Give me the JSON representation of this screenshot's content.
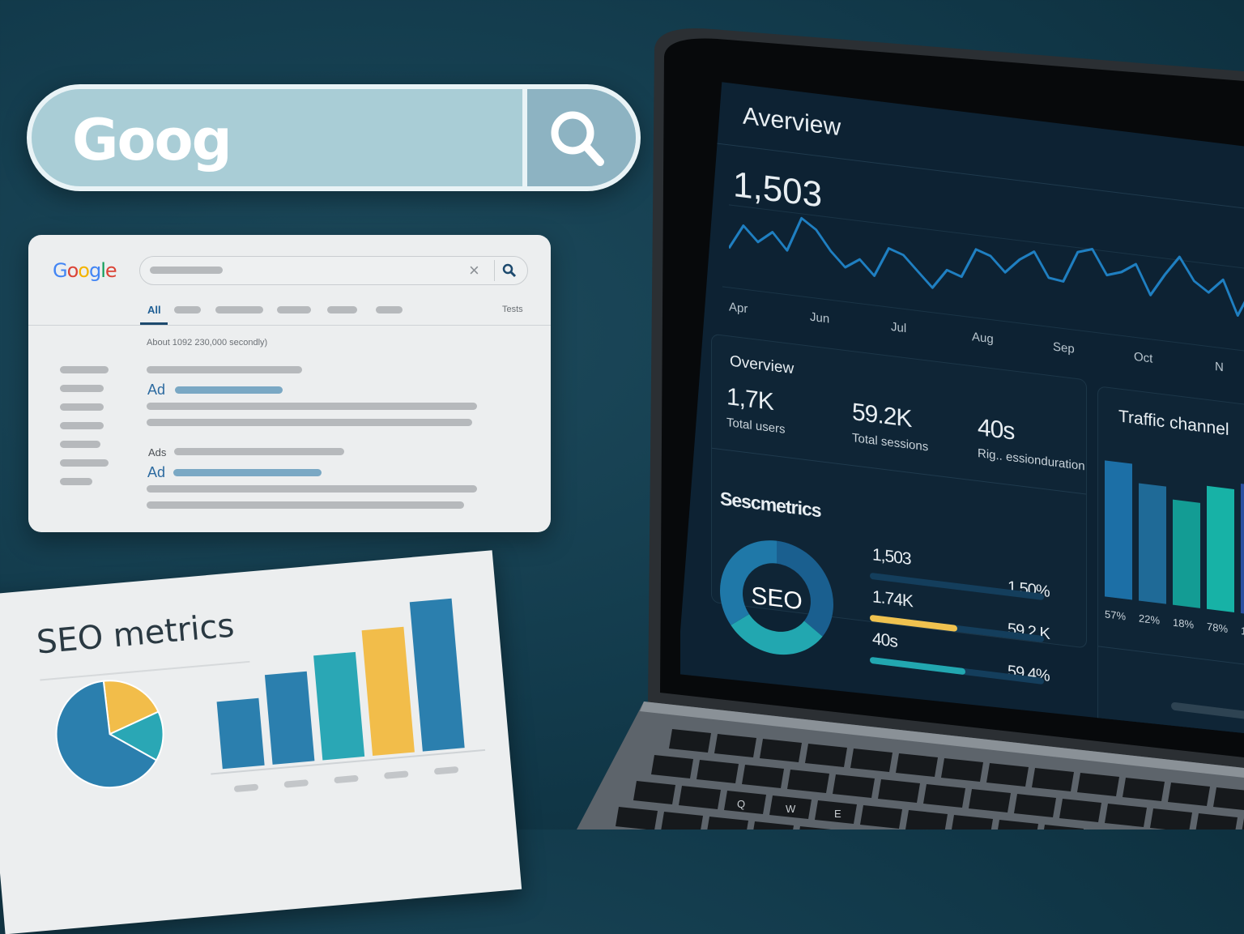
{
  "search_pill": {
    "query": "Goog",
    "icon": "search-icon"
  },
  "serp": {
    "logo": "Google",
    "logo_colors": [
      "#4285f4",
      "#db4437",
      "#f4b400",
      "#4285f4",
      "#0f9d58",
      "#db4437"
    ],
    "tabs": {
      "active": "All",
      "right": "Tests"
    },
    "result_stats": "About 1092 230,000 secondly)",
    "ad_label_1": "Ad",
    "ads_heading": "Ads",
    "ad_label_2": "Ad"
  },
  "paper": {
    "title": "SEO metrics",
    "pie": {
      "slices": [
        {
          "value": 65,
          "color": "#2b7fae"
        },
        {
          "value": 20,
          "color": "#f2bd4a"
        },
        {
          "value": 15,
          "color": "#2aa7b5"
        }
      ]
    },
    "bars": {
      "values": [
        45,
        60,
        70,
        84,
        100
      ],
      "colors": [
        "#2b7fae",
        "#2b7fae",
        "#2aa7b5",
        "#f2bd4a",
        "#2b7fae"
      ]
    }
  },
  "dashboard": {
    "title": "Averview",
    "big_number": "1,503",
    "months": [
      "Apr",
      "Jun",
      "Jul",
      "Aug",
      "Sep",
      "Oct",
      "N"
    ],
    "sparkline": [
      30,
      55,
      40,
      52,
      35,
      70,
      60,
      40,
      25,
      35,
      20,
      50,
      45,
      30,
      15,
      35,
      30,
      60,
      55,
      40,
      55,
      65,
      40,
      38,
      70,
      75,
      50,
      55,
      65,
      35,
      58,
      78,
      55,
      45,
      60,
      25,
      55,
      72,
      68,
      50
    ],
    "overview": {
      "title": "Overview",
      "stats": [
        {
          "value": "1,7K",
          "label": "Total users"
        },
        {
          "value": "59.2K",
          "label": "Total sessions"
        },
        {
          "value": "40s",
          "label": "Rig.. essionduration"
        }
      ]
    },
    "seo": {
      "title": "Sescmetrics",
      "donut_label": "SEO",
      "donut": [
        {
          "value": 35,
          "color": "#1a5f8f"
        },
        {
          "value": 30,
          "color": "#22a7b0"
        },
        {
          "value": 35,
          "color": "#1f78a8"
        }
      ],
      "rows": [
        {
          "left": "1,503",
          "right": "1,50%",
          "progress": 0,
          "color": "#1f78a8"
        },
        {
          "left": "1.74K",
          "right": "59.2.K",
          "progress": 0.5,
          "color": "#f0c24f"
        },
        {
          "left": "40s",
          "right": "59.4%",
          "progress": 0.55,
          "color": "#22a7b0"
        }
      ]
    },
    "traffic": {
      "title": "Traffic channel",
      "bars": [
        {
          "label": "57%",
          "value": 168,
          "color": "#1c6fa6"
        },
        {
          "label": "22%",
          "value": 145,
          "color": "#1f6a97"
        },
        {
          "label": "18%",
          "value": 130,
          "color": "#139c94"
        },
        {
          "label": "78%",
          "value": 152,
          "color": "#17b2a6"
        },
        {
          "label": "1",
          "value": 160,
          "color": "#2a4fa0"
        }
      ]
    }
  },
  "keyboard": {
    "keys": [
      "Q",
      "W",
      "E"
    ]
  }
}
